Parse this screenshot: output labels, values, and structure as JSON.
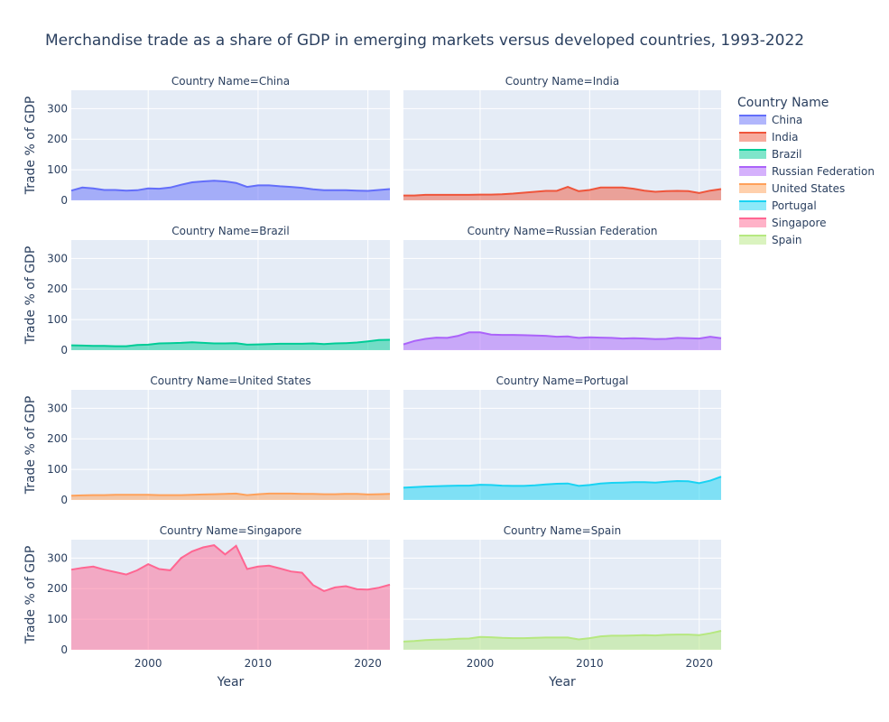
{
  "chart_data": {
    "type": "area",
    "title": "Merchandise trade as a share of GDP in emerging markets versus developed countries, 1993-2022",
    "xlabel": "Year",
    "ylabel": "Trade % of GDP",
    "facet_label_prefix": "Country Name=",
    "legend_title": "Country Name",
    "legend_placement": "right",
    "grid": true,
    "xlim": [
      1993,
      2022
    ],
    "ylim": [
      0,
      360
    ],
    "x_ticks": [
      2000,
      2010,
      2020
    ],
    "y_ticks": [
      0,
      100,
      200,
      300
    ],
    "x": [
      1993,
      1994,
      1995,
      1996,
      1997,
      1998,
      1999,
      2000,
      2001,
      2002,
      2003,
      2004,
      2005,
      2006,
      2007,
      2008,
      2009,
      2010,
      2011,
      2012,
      2013,
      2014,
      2015,
      2016,
      2017,
      2018,
      2019,
      2020,
      2021,
      2022
    ],
    "series": [
      {
        "name": "China",
        "color": "#636efa",
        "values": [
          32,
          42,
          39,
          34,
          34,
          32,
          33,
          39,
          38,
          42,
          51,
          59,
          62,
          64,
          62,
          57,
          44,
          49,
          49,
          46,
          44,
          41,
          36,
          33,
          33,
          33,
          32,
          31,
          34,
          37
        ]
      },
      {
        "name": "India",
        "color": "#EF553B",
        "values": [
          16,
          16,
          18,
          18,
          18,
          18,
          18,
          19,
          19,
          20,
          22,
          25,
          28,
          31,
          31,
          44,
          30,
          34,
          42,
          42,
          42,
          38,
          32,
          28,
          30,
          31,
          30,
          24,
          32,
          37
        ]
      },
      {
        "name": "Brazil",
        "color": "#00cc96",
        "values": [
          16,
          15,
          14,
          14,
          13,
          13,
          17,
          18,
          22,
          23,
          24,
          26,
          24,
          22,
          22,
          23,
          18,
          19,
          20,
          21,
          21,
          21,
          22,
          20,
          22,
          23,
          25,
          29,
          33,
          34
        ]
      },
      {
        "name": "Russian Federation",
        "color": "#ab63fa",
        "values": [
          19,
          30,
          37,
          41,
          40,
          47,
          58,
          58,
          51,
          50,
          50,
          49,
          48,
          47,
          44,
          45,
          40,
          42,
          41,
          40,
          38,
          39,
          38,
          36,
          37,
          40,
          39,
          38,
          44,
          39
        ]
      },
      {
        "name": "United States",
        "color": "#FFA15A",
        "values": [
          14,
          15,
          16,
          16,
          17,
          17,
          17,
          17,
          16,
          16,
          16,
          17,
          18,
          19,
          20,
          21,
          16,
          19,
          21,
          21,
          21,
          20,
          20,
          19,
          19,
          20,
          20,
          18,
          19,
          20
        ]
      },
      {
        "name": "Portugal",
        "color": "#19d3f3",
        "values": [
          40,
          42,
          44,
          45,
          46,
          47,
          47,
          50,
          49,
          47,
          46,
          46,
          48,
          51,
          53,
          54,
          46,
          49,
          54,
          56,
          57,
          58,
          58,
          57,
          60,
          62,
          61,
          55,
          63,
          76
        ]
      },
      {
        "name": "Singapore",
        "color": "#FF6692",
        "values": [
          262,
          268,
          272,
          262,
          254,
          246,
          260,
          280,
          264,
          260,
          300,
          322,
          335,
          342,
          312,
          340,
          264,
          272,
          275,
          266,
          256,
          252,
          212,
          192,
          204,
          208,
          198,
          197,
          203,
          213
        ]
      },
      {
        "name": "Spain",
        "color": "#B6E880",
        "values": [
          27,
          29,
          32,
          33,
          34,
          36,
          37,
          42,
          41,
          39,
          38,
          38,
          39,
          40,
          40,
          40,
          34,
          38,
          44,
          46,
          46,
          47,
          48,
          47,
          49,
          50,
          50,
          48,
          54,
          62
        ]
      }
    ]
  }
}
